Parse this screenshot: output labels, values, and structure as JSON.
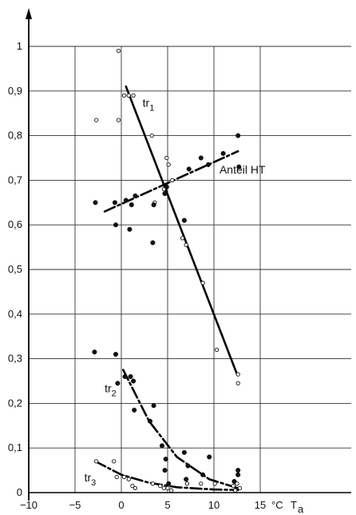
{
  "chart_data": {
    "type": "scatter",
    "title": "",
    "xlabel": "T",
    "xlabel_sub": "a",
    "x_unit": "°C",
    "ylabel": "",
    "xlim": [
      -10,
      15
    ],
    "ylim": [
      0,
      1
    ],
    "grid": true,
    "x_ticks": [
      {
        "value": -10,
        "label": "−10"
      },
      {
        "value": -5,
        "label": "−5"
      },
      {
        "value": 0,
        "label": "0"
      },
      {
        "value": 5,
        "label": "5"
      },
      {
        "value": 10,
        "label": "10"
      },
      {
        "value": 15,
        "label": "15"
      }
    ],
    "y_ticks": [
      {
        "value": 0,
        "label": "0"
      },
      {
        "value": 0.1,
        "label": "0,1"
      },
      {
        "value": 0.2,
        "label": "0,2"
      },
      {
        "value": 0.3,
        "label": "0,3"
      },
      {
        "value": 0.4,
        "label": "0,4"
      },
      {
        "value": 0.5,
        "label": "0,5"
      },
      {
        "value": 0.6,
        "label": "0,6"
      },
      {
        "value": 0.7,
        "label": "0,7"
      },
      {
        "value": 0.8,
        "label": "0,8"
      },
      {
        "value": 0.9,
        "label": "0,9"
      },
      {
        "value": 1,
        "label": "1"
      }
    ],
    "series": [
      {
        "name": "tr1",
        "marker": "open",
        "points": [
          [
            -0.3,
            0.99
          ],
          [
            -2.7,
            0.835
          ],
          [
            -0.3,
            0.835
          ],
          [
            0.3,
            0.89
          ],
          [
            0.8,
            0.89
          ],
          [
            1.3,
            0.89
          ],
          [
            3.3,
            0.8
          ],
          [
            3.6,
            0.65
          ],
          [
            4.9,
            0.75
          ],
          [
            5.1,
            0.735
          ],
          [
            5.5,
            0.7
          ],
          [
            4.6,
            0.68
          ],
          [
            6.6,
            0.57
          ],
          [
            7.0,
            0.555
          ],
          [
            8.8,
            0.47
          ],
          [
            10.3,
            0.32
          ],
          [
            12.6,
            0.265
          ],
          [
            12.6,
            0.245
          ]
        ]
      },
      {
        "name": "Anteil HT",
        "marker": "filled",
        "points": [
          [
            -2.8,
            0.65
          ],
          [
            -0.7,
            0.65
          ],
          [
            -0.6,
            0.6
          ],
          [
            0.5,
            0.655
          ],
          [
            1.1,
            0.645
          ],
          [
            1.5,
            0.665
          ],
          [
            0.9,
            0.59
          ],
          [
            3.4,
            0.56
          ],
          [
            3.5,
            0.645
          ],
          [
            4.7,
            0.67
          ],
          [
            4.9,
            0.685
          ],
          [
            6.8,
            0.61
          ],
          [
            7.3,
            0.725
          ],
          [
            8.6,
            0.75
          ],
          [
            9.4,
            0.735
          ],
          [
            11.0,
            0.76
          ],
          [
            12.6,
            0.8
          ],
          [
            12.7,
            0.73
          ]
        ]
      },
      {
        "name": "tr2",
        "marker": "filled",
        "points": [
          [
            -2.9,
            0.315
          ],
          [
            -0.6,
            0.31
          ],
          [
            -0.4,
            0.245
          ],
          [
            0.4,
            0.26
          ],
          [
            1.0,
            0.26
          ],
          [
            1.3,
            0.25
          ],
          [
            1.4,
            0.185
          ],
          [
            3.1,
            0.16
          ],
          [
            3.5,
            0.195
          ],
          [
            4.4,
            0.105
          ],
          [
            4.8,
            0.075
          ],
          [
            4.7,
            0.05
          ],
          [
            5.1,
            0.02
          ],
          [
            6.8,
            0.09
          ],
          [
            7.2,
            0.06
          ],
          [
            7.0,
            0.03
          ],
          [
            8.8,
            0.04
          ],
          [
            9.5,
            0.08
          ],
          [
            12.2,
            0.025
          ],
          [
            12.6,
            0.04
          ],
          [
            12.6,
            0.05
          ]
        ]
      },
      {
        "name": "tr3",
        "marker": "open",
        "points": [
          [
            -2.7,
            0.07
          ],
          [
            -0.8,
            0.07
          ],
          [
            -0.5,
            0.035
          ],
          [
            0.3,
            0.035
          ],
          [
            0.8,
            0.03
          ],
          [
            1.2,
            0.015
          ],
          [
            1.5,
            0.01
          ],
          [
            3.4,
            0.02
          ],
          [
            4.2,
            0.015
          ],
          [
            4.6,
            0.01
          ],
          [
            5.0,
            0.01
          ],
          [
            5.4,
            0.005
          ],
          [
            7.1,
            0.02
          ],
          [
            8.6,
            0.02
          ],
          [
            10.1,
            0.02
          ],
          [
            12.1,
            0.015
          ],
          [
            12.5,
            0.02
          ],
          [
            12.8,
            0.01
          ],
          [
            12.3,
            0.005
          ]
        ]
      }
    ],
    "lines": [
      {
        "name": "tr1",
        "style": "solid",
        "points": [
          [
            0.5,
            0.91
          ],
          [
            12.5,
            0.265
          ]
        ]
      },
      {
        "name": "Anteil HT",
        "style": "dashdot",
        "points": [
          [
            -1.8,
            0.63
          ],
          [
            12.6,
            0.765
          ]
        ]
      },
      {
        "name": "tr2",
        "style": "dashdot",
        "points": [
          [
            0.2,
            0.275
          ],
          [
            3.0,
            0.16
          ],
          [
            6.0,
            0.08
          ],
          [
            9.5,
            0.03
          ],
          [
            12.6,
            0.01
          ]
        ]
      },
      {
        "name": "tr3",
        "style": "dashdot",
        "points": [
          [
            -2.8,
            0.07
          ],
          [
            0.0,
            0.04
          ],
          [
            3.0,
            0.022
          ],
          [
            6.0,
            0.012
          ],
          [
            10.0,
            0.007
          ],
          [
            12.6,
            0.006
          ]
        ]
      }
    ],
    "annotations": [
      {
        "label": "tr",
        "sub": "1",
        "x": 2.3,
        "y": 0.865
      },
      {
        "label": "Anteil  HT",
        "sub": "",
        "x": 10.6,
        "y": 0.715
      },
      {
        "label": "tr",
        "sub": "2",
        "x": -1.8,
        "y": 0.225
      },
      {
        "label": "tr",
        "sub": "3",
        "x": -4.0,
        "y": 0.025
      }
    ]
  }
}
